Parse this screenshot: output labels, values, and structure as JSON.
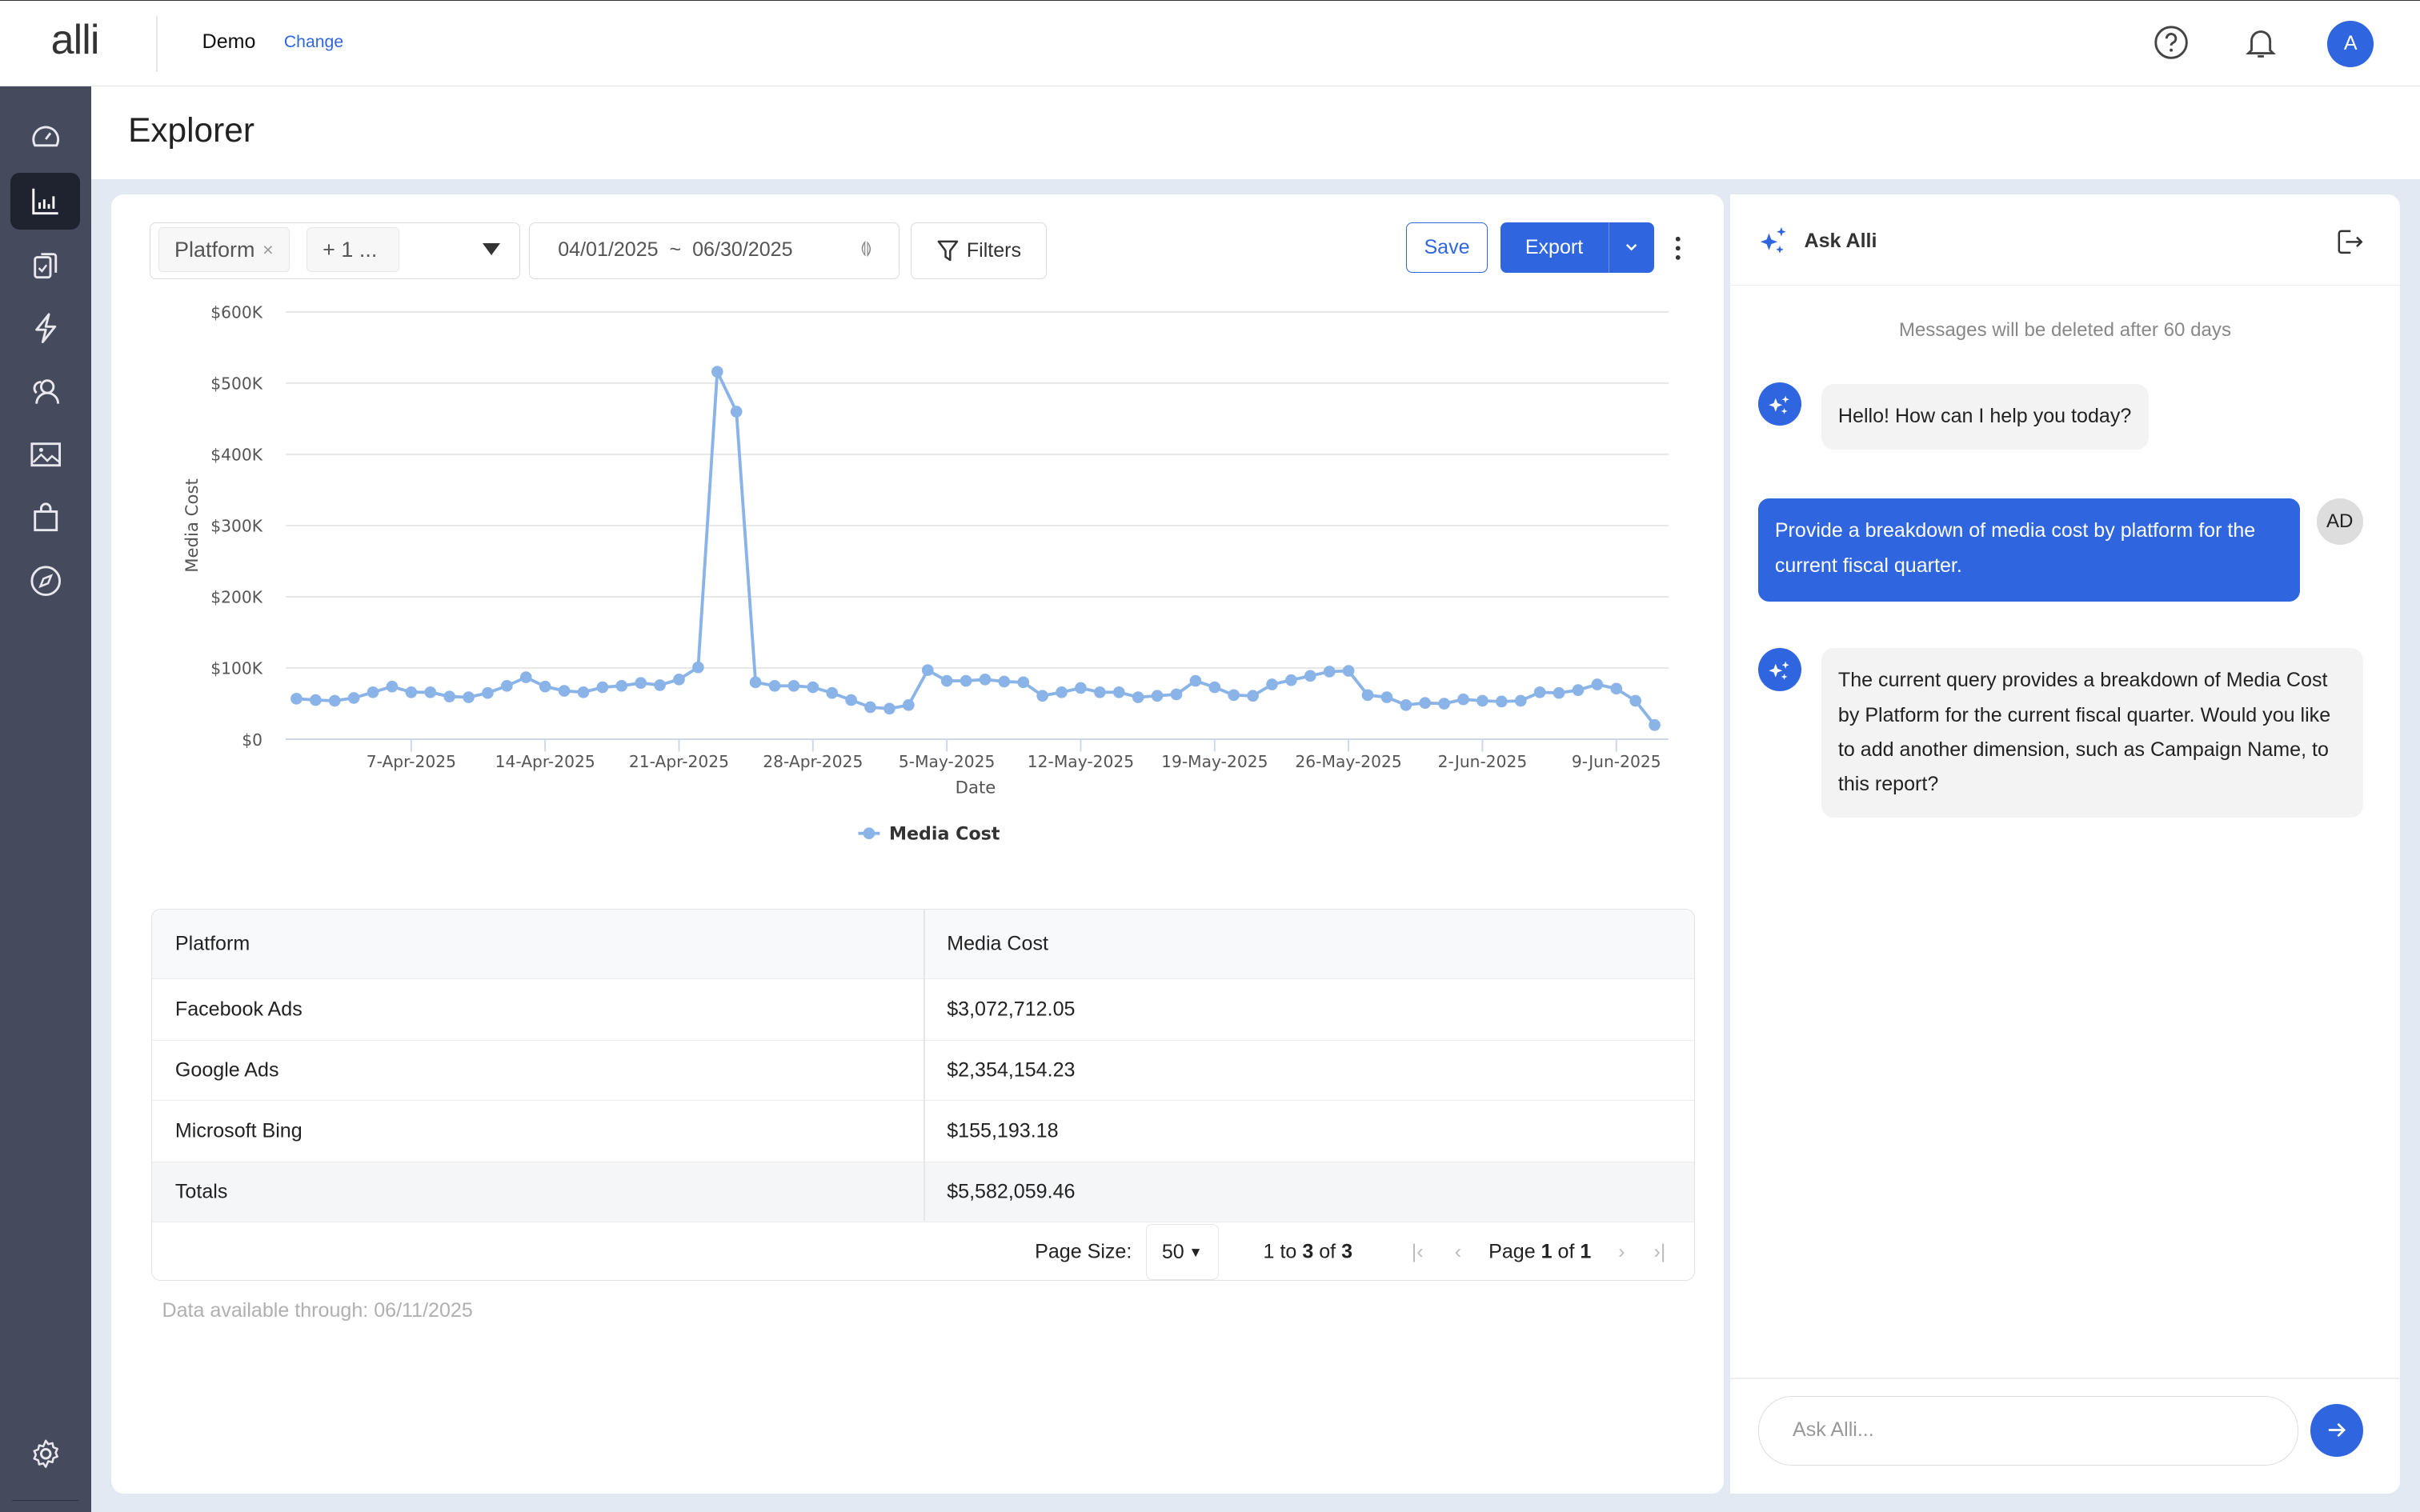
{
  "topbar": {
    "logo": "alli",
    "account": "Demo",
    "change_label": "Change",
    "avatar_initial": "A"
  },
  "sidebar": {
    "items": [
      {
        "icon": "dashboard-gauge-icon"
      },
      {
        "icon": "bar-chart-icon",
        "active": true
      },
      {
        "icon": "clipboard-check-icon"
      },
      {
        "icon": "lightning-icon"
      },
      {
        "icon": "audience-users-icon"
      },
      {
        "icon": "image-icon"
      },
      {
        "icon": "shopping-bag-icon"
      },
      {
        "icon": "compass-icon"
      }
    ],
    "settings_icon": "gear-icon"
  },
  "page": {
    "title": "Explorer"
  },
  "toolbar": {
    "dimension_chip": "Platform",
    "more_chip": "+ 1 ...",
    "date_range": "04/01/2025  ~  06/30/2025",
    "filters_label": "Filters",
    "save_label": "Save",
    "export_label": "Export"
  },
  "chart_data": {
    "type": "line",
    "xlabel": "Date",
    "ylabel": "Media Cost",
    "ylim": [
      0,
      600000
    ],
    "yticks": [
      "$0",
      "$100K",
      "$200K",
      "$300K",
      "$400K",
      "$500K",
      "$600K"
    ],
    "xticks": [
      "7-Apr-2025",
      "14-Apr-2025",
      "21-Apr-2025",
      "28-Apr-2025",
      "5-May-2025",
      "12-May-2025",
      "19-May-2025",
      "26-May-2025",
      "2-Jun-2025",
      "9-Jun-2025"
    ],
    "x_start": "2025-04-01",
    "x_end": "2025-06-11",
    "grid": true,
    "legend": "bottom",
    "color": "#8ab4e8",
    "series": [
      {
        "name": "Media Cost",
        "values": [
          57000,
          55000,
          54000,
          58000,
          66000,
          74000,
          66000,
          66000,
          60000,
          59000,
          65000,
          75000,
          87000,
          74000,
          68000,
          66000,
          73000,
          75000,
          79000,
          76000,
          84000,
          101000,
          516000,
          460000,
          80000,
          75000,
          75000,
          73000,
          65000,
          55000,
          45000,
          43000,
          48000,
          97000,
          82000,
          82000,
          84000,
          81000,
          80000,
          61000,
          66000,
          72000,
          66000,
          66000,
          59000,
          61000,
          63000,
          82000,
          73000,
          62000,
          61000,
          77000,
          83000,
          89000,
          95000,
          96000,
          62000,
          59000,
          48000,
          51000,
          50000,
          56000,
          54000,
          53000,
          54000,
          66000,
          65000,
          69000,
          77000,
          71000,
          54000,
          20000
        ]
      }
    ]
  },
  "table": {
    "headers": [
      "Platform",
      "Media Cost"
    ],
    "rows": [
      [
        "Facebook Ads",
        "$3,072,712.05"
      ],
      [
        "Google Ads",
        "$2,354,154.23"
      ],
      [
        "Microsoft Bing",
        "$155,193.18"
      ]
    ],
    "totals": [
      "Totals",
      "$5,582,059.46"
    ]
  },
  "pagination": {
    "page_size_label": "Page Size:",
    "page_size": "50",
    "range_pre": "1 to ",
    "range_a": "3",
    "range_mid": " of ",
    "range_b": "3",
    "page_pre": "Page ",
    "page_a": "1",
    "page_mid": " of ",
    "page_b": "1"
  },
  "footer_note": "Data available through: 06/11/2025",
  "chat": {
    "title": "Ask Alli",
    "notice": "Messages will be deleted after 60 days",
    "messages": [
      {
        "from": "bot",
        "text": "Hello! How can I help you today?"
      },
      {
        "from": "user",
        "avatar": "AD",
        "text": "Provide a breakdown of media cost by platform for the current fiscal quarter."
      },
      {
        "from": "bot",
        "text": "The current query provides a breakdown of Media Cost by Platform for the current fiscal quarter. Would you like to add another dimension, such as Campaign Name, to this report?"
      }
    ],
    "input_placeholder": "Ask Alli..."
  }
}
